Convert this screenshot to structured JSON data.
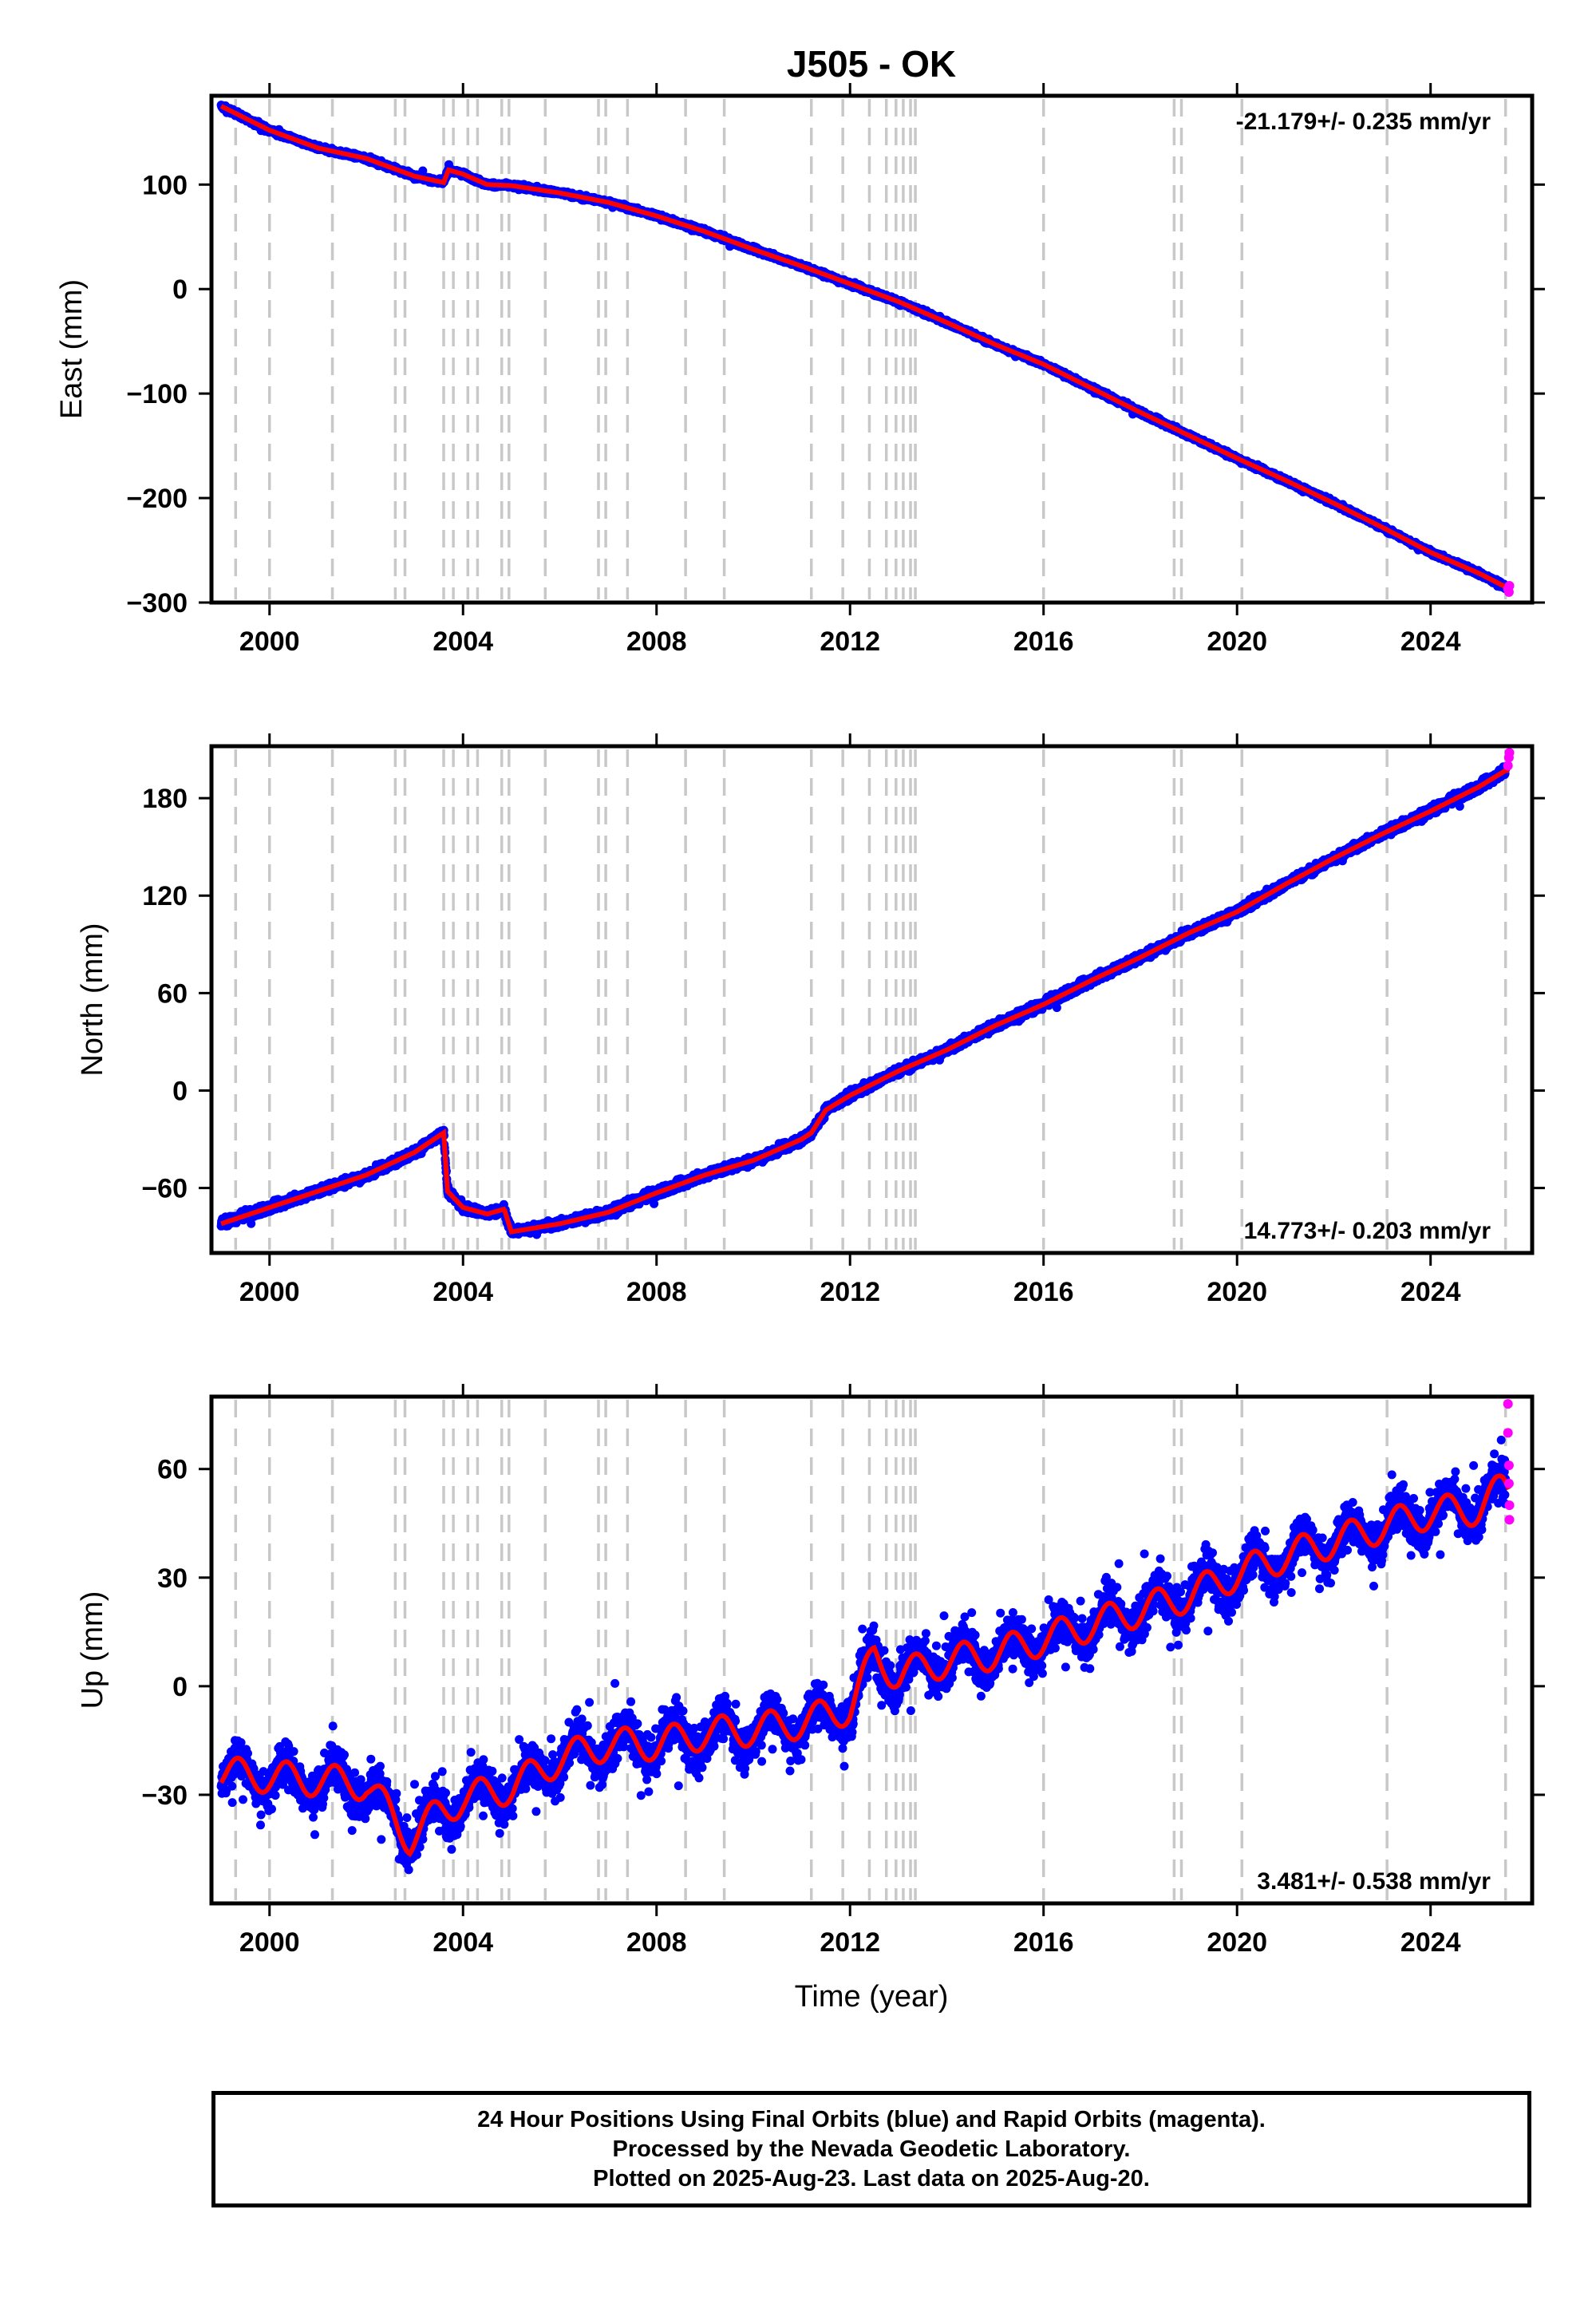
{
  "title": "J505 - OK",
  "x_axis_label": "Time (year)",
  "footer_lines": [
    "24 Hour Positions Using Final Orbits (blue) and Rapid Orbits (magenta).",
    "Processed by the Nevada Geodetic Laboratory.",
    "Plotted on 2025-Aug-23. Last data on 2025-Aug-20."
  ],
  "colors": {
    "final_orbits": "#0000ff",
    "rapid_orbits": "#ff00ff",
    "model_fit": "#ff0000",
    "event_lines": "#c8c8c8"
  },
  "chart_data": [
    {
      "type": "scatter",
      "panel": "East",
      "ylabel": "East (mm)",
      "xlim": [
        1998.8,
        2026.1
      ],
      "ylim": [
        -300,
        185
      ],
      "x_ticks": [
        "2000",
        "2004",
        "2008",
        "2012",
        "2016",
        "2020",
        "2024"
      ],
      "y_ticks": [
        "100",
        "0",
        "−100",
        "−200",
        "−300"
      ],
      "rate_label": "-21.179+/- 0.235 mm/yr",
      "rate_position": "top-right",
      "event_lines_x": [
        1999.3,
        2000.0,
        2001.3,
        2002.6,
        2002.8,
        2003.6,
        2003.8,
        2004.1,
        2004.3,
        2004.8,
        2004.95,
        2005.7,
        2006.8,
        2006.95,
        2007.4,
        2008.6,
        2009.4,
        2011.2,
        2011.85,
        2012.4,
        2012.75,
        2012.95,
        2013.1,
        2013.25,
        2013.35,
        2016.0,
        2018.7,
        2018.85,
        2020.1,
        2023.1,
        2025.55
      ],
      "series": [
        {
          "name": "Final Orbits",
          "points": [
            [
              1999.0,
              175
            ],
            [
              2000.0,
              152
            ],
            [
              2001.0,
              135
            ],
            [
              2002.0,
              125
            ],
            [
              2003.0,
              108
            ],
            [
              2003.6,
              102
            ],
            [
              2003.7,
              114
            ],
            [
              2004.0,
              110
            ],
            [
              2004.5,
              100
            ],
            [
              2005.0,
              99
            ],
            [
              2006.0,
              92
            ],
            [
              2007.0,
              83
            ],
            [
              2008.0,
              70
            ],
            [
              2009.0,
              55
            ],
            [
              2010.0,
              38
            ],
            [
              2011.0,
              22
            ],
            [
              2012.0,
              5
            ],
            [
              2013.0,
              -12
            ],
            [
              2014.0,
              -32
            ],
            [
              2015.0,
              -53
            ],
            [
              2016.0,
              -72
            ],
            [
              2017.0,
              -95
            ],
            [
              2018.0,
              -118
            ],
            [
              2019.0,
              -140
            ],
            [
              2020.0,
              -162
            ],
            [
              2021.0,
              -183
            ],
            [
              2022.0,
              -205
            ],
            [
              2023.0,
              -228
            ],
            [
              2024.0,
              -252
            ],
            [
              2025.0,
              -272
            ],
            [
              2025.55,
              -285
            ]
          ]
        },
        {
          "name": "Rapid Orbits",
          "points": [
            [
              2025.6,
              -287
            ],
            [
              2025.62,
              -290
            ],
            [
              2025.63,
              -284
            ]
          ]
        }
      ]
    },
    {
      "type": "scatter",
      "panel": "North",
      "ylabel": "North (mm)",
      "xlim": [
        1998.8,
        2026.1
      ],
      "ylim": [
        -100,
        212
      ],
      "x_ticks": [
        "2000",
        "2004",
        "2008",
        "2012",
        "2016",
        "2020",
        "2024"
      ],
      "y_ticks": [
        "180",
        "120",
        "60",
        "0",
        "−60"
      ],
      "rate_label": "14.773+/- 0.203 mm/yr",
      "rate_position": "bottom-right",
      "event_lines_x": [
        1999.3,
        2000.0,
        2001.3,
        2002.6,
        2002.8,
        2003.6,
        2003.8,
        2004.1,
        2004.3,
        2004.8,
        2004.95,
        2005.7,
        2006.8,
        2006.95,
        2007.4,
        2008.6,
        2009.4,
        2011.2,
        2011.85,
        2012.4,
        2012.75,
        2012.95,
        2013.1,
        2013.25,
        2013.35,
        2016.0,
        2018.7,
        2018.85,
        2020.1,
        2023.1,
        2025.55
      ],
      "series": [
        {
          "name": "Final Orbits",
          "points": [
            [
              1999.0,
              -82
            ],
            [
              2000.0,
              -72
            ],
            [
              2001.0,
              -62
            ],
            [
              2002.0,
              -52
            ],
            [
              2003.0,
              -38
            ],
            [
              2003.6,
              -26
            ],
            [
              2003.68,
              -62
            ],
            [
              2004.0,
              -72
            ],
            [
              2004.5,
              -76
            ],
            [
              2004.85,
              -73
            ],
            [
              2005.0,
              -87
            ],
            [
              2006.0,
              -82
            ],
            [
              2007.0,
              -75
            ],
            [
              2008.0,
              -63
            ],
            [
              2009.0,
              -52
            ],
            [
              2010.0,
              -43
            ],
            [
              2011.0,
              -30
            ],
            [
              2011.2,
              -26
            ],
            [
              2011.5,
              -12
            ],
            [
              2012.0,
              -3
            ],
            [
              2013.0,
              12
            ],
            [
              2014.0,
              25
            ],
            [
              2015.0,
              40
            ],
            [
              2016.0,
              53
            ],
            [
              2017.0,
              68
            ],
            [
              2018.0,
              82
            ],
            [
              2019.0,
              97
            ],
            [
              2020.0,
              110
            ],
            [
              2021.0,
              127
            ],
            [
              2022.0,
              143
            ],
            [
              2023.0,
              158
            ],
            [
              2024.0,
              172
            ],
            [
              2025.0,
              187
            ],
            [
              2025.55,
              197
            ]
          ]
        },
        {
          "name": "Rapid Orbits",
          "points": [
            [
              2025.6,
              200
            ],
            [
              2025.62,
              205
            ],
            [
              2025.63,
              208
            ]
          ]
        }
      ]
    },
    {
      "type": "scatter",
      "panel": "Up",
      "ylabel": "Up (mm)",
      "xlim": [
        1998.8,
        2026.1
      ],
      "ylim": [
        -60,
        80
      ],
      "x_ticks": [
        "2000",
        "2004",
        "2008",
        "2012",
        "2016",
        "2020",
        "2024"
      ],
      "y_ticks": [
        "60",
        "30",
        "0",
        "−30"
      ],
      "rate_label": "3.481+/- 0.538 mm/yr",
      "rate_position": "bottom-right",
      "event_lines_x": [
        1999.3,
        2000.0,
        2001.3,
        2002.6,
        2002.8,
        2003.6,
        2003.8,
        2004.1,
        2004.3,
        2004.8,
        2004.95,
        2005.7,
        2006.8,
        2006.95,
        2007.4,
        2008.6,
        2009.4,
        2011.2,
        2011.85,
        2012.4,
        2012.75,
        2012.95,
        2013.1,
        2013.25,
        2013.35,
        2016.0,
        2018.7,
        2018.85,
        2020.1,
        2023.1,
        2025.55
      ],
      "series": [
        {
          "name": "Final Orbits",
          "points": [
            [
              1999.0,
              -24
            ],
            [
              2000.0,
              -25
            ],
            [
              2001.0,
              -26
            ],
            [
              2002.0,
              -27
            ],
            [
              2002.9,
              -42
            ],
            [
              2003.5,
              -35
            ],
            [
              2004.0,
              -31
            ],
            [
              2005.0,
              -28
            ],
            [
              2006.0,
              -20
            ],
            [
              2007.0,
              -16
            ],
            [
              2008.0,
              -16
            ],
            [
              2009.0,
              -13
            ],
            [
              2010.0,
              -12
            ],
            [
              2011.0,
              -10
            ],
            [
              2012.0,
              -6
            ],
            [
              2012.5,
              8
            ],
            [
              2013.0,
              3
            ],
            [
              2014.0,
              7
            ],
            [
              2015.0,
              9
            ],
            [
              2016.0,
              13
            ],
            [
              2017.0,
              17
            ],
            [
              2018.0,
              21
            ],
            [
              2019.0,
              25
            ],
            [
              2020.0,
              31
            ],
            [
              2021.0,
              36
            ],
            [
              2022.0,
              40
            ],
            [
              2023.0,
              44
            ],
            [
              2024.0,
              48
            ],
            [
              2025.0,
              49
            ],
            [
              2025.5,
              55
            ]
          ]
        },
        {
          "name": "Rapid Orbits",
          "points": [
            [
              2025.6,
              78
            ],
            [
              2025.6,
              70
            ],
            [
              2025.62,
              61
            ],
            [
              2025.62,
              56
            ],
            [
              2025.63,
              50
            ],
            [
              2025.63,
              46
            ]
          ]
        }
      ]
    }
  ]
}
